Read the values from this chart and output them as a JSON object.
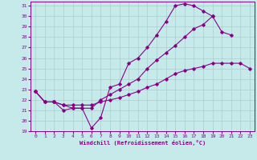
{
  "xlabel": "Windchill (Refroidissement éolien,°C)",
  "xlim": [
    -0.5,
    23.5
  ],
  "ylim": [
    19,
    31.4
  ],
  "xticks": [
    0,
    1,
    2,
    3,
    4,
    5,
    6,
    7,
    8,
    9,
    10,
    11,
    12,
    13,
    14,
    15,
    16,
    17,
    18,
    19,
    20,
    21,
    22,
    23
  ],
  "yticks": [
    19,
    20,
    21,
    22,
    23,
    24,
    25,
    26,
    27,
    28,
    29,
    30,
    31
  ],
  "bg_color": "#c6eaea",
  "line_color": "#880088",
  "grid_color": "#aacccc",
  "line1_x": [
    0,
    1,
    2,
    3,
    4,
    5,
    6,
    7,
    8,
    9,
    10,
    11,
    12,
    13,
    14,
    15,
    16,
    17,
    18,
    19
  ],
  "line1_y": [
    22.8,
    21.8,
    21.8,
    21.0,
    21.2,
    21.2,
    19.3,
    20.3,
    23.2,
    23.5,
    25.5,
    26.0,
    27.0,
    28.2,
    29.5,
    31.0,
    31.2,
    31.0,
    30.5,
    30.0
  ],
  "line2_x": [
    0,
    1,
    2,
    3,
    4,
    5,
    6,
    7,
    8,
    9,
    10,
    11,
    12,
    13,
    14,
    15,
    16,
    17,
    18,
    19,
    20,
    21
  ],
  "line2_y": [
    22.8,
    21.8,
    21.8,
    21.5,
    21.2,
    21.2,
    21.2,
    22.0,
    22.5,
    23.0,
    23.5,
    24.0,
    25.0,
    25.8,
    26.5,
    27.2,
    28.0,
    28.8,
    29.2,
    30.0,
    28.5,
    28.2
  ],
  "line3_x": [
    0,
    1,
    2,
    3,
    4,
    5,
    6,
    7,
    8,
    9,
    10,
    11,
    12,
    13,
    14,
    15,
    16,
    17,
    18,
    19,
    20,
    21,
    22,
    23
  ],
  "line3_y": [
    22.8,
    21.8,
    21.8,
    21.5,
    21.5,
    21.5,
    21.5,
    21.8,
    22.0,
    22.2,
    22.5,
    22.8,
    23.2,
    23.5,
    24.0,
    24.5,
    24.8,
    25.0,
    25.2,
    25.5,
    25.5,
    25.5,
    25.5,
    25.0
  ]
}
